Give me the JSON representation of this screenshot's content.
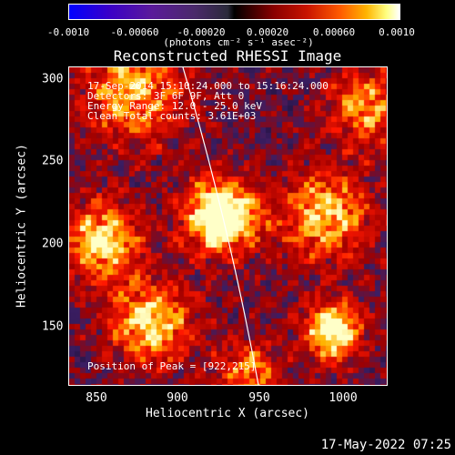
{
  "colorbar": {
    "ticks": [
      "-0.0010",
      "-0.00060",
      "-0.00020",
      "0.00020",
      "0.00060",
      "0.0010"
    ],
    "units": "(photons cm⁻² s⁻¹ asec⁻²)"
  },
  "title": "Reconstructed RHESSI Image",
  "annotations": {
    "time_range": "17-Sep-2014 15:10:24.000 to 15:16:24.000",
    "detectors": "Detectors: 3F 6F 9F, Att 0",
    "energy_range": "Energy Range: 12.0 - 25.0 keV",
    "clean_counts": "Clean     Total counts: 3.61E+03",
    "peak": "Position of Peak = [922,215]"
  },
  "axes": {
    "xlabel": "Heliocentric X (arcsec)",
    "ylabel": "Heliocentric Y (arcsec)",
    "xticks": [
      "850",
      "900",
      "950",
      "1000"
    ],
    "yticks": [
      "300",
      "250",
      "200",
      "150"
    ],
    "xlim": [
      832,
      1024
    ],
    "ylim": [
      111,
      303
    ]
  },
  "peak_position": [
    922,
    215
  ],
  "footer_timestamp": "17-May-2022 07:25",
  "colors": {
    "background": "#000000",
    "text": "#ffffff",
    "limb_line": "#ffffff"
  }
}
